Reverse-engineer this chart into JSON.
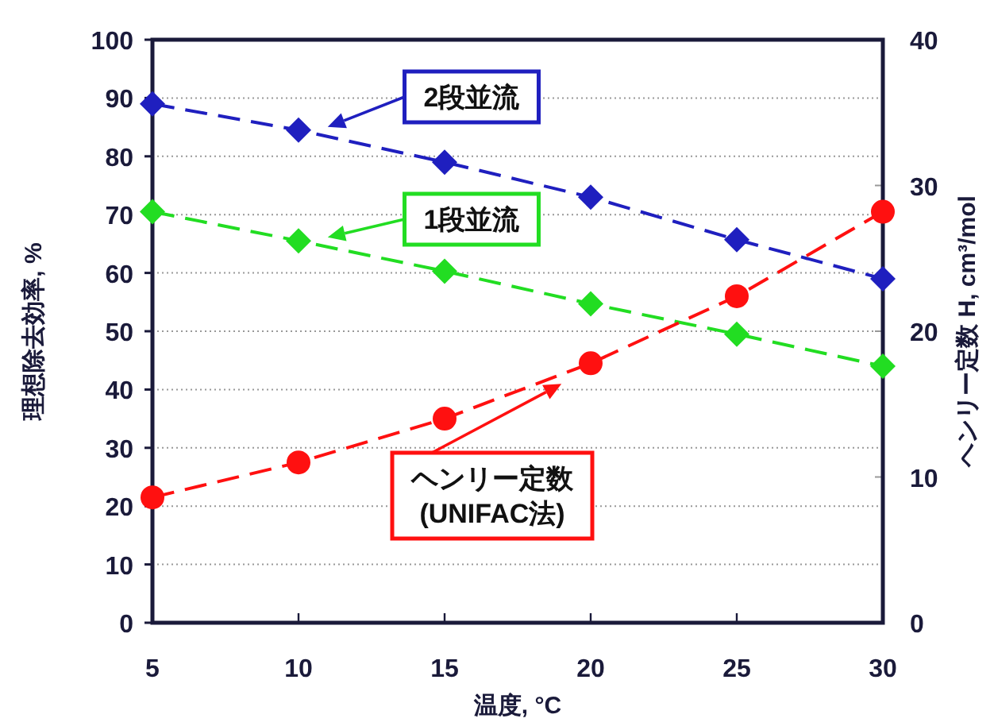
{
  "chart_data": {
    "type": "line",
    "xlabel": "温度, °C",
    "ylabel": "理想除去効率, %",
    "y2label": "ヘンリー定数 H, cm³/mol",
    "x": [
      5,
      10,
      15,
      20,
      25,
      30
    ],
    "xlim": [
      5,
      30
    ],
    "xticks": [
      5,
      10,
      15,
      20,
      25,
      30
    ],
    "ylim": [
      0,
      100
    ],
    "yticks": [
      0,
      10,
      20,
      30,
      40,
      50,
      60,
      70,
      80,
      90,
      100
    ],
    "y2lim": [
      0,
      40
    ],
    "y2ticks": [
      0,
      10,
      20,
      30,
      40
    ],
    "grid": "y",
    "legend": "top",
    "line_style": "dashed",
    "series": [
      {
        "name": "2段並流",
        "color": "#1f1fbf",
        "marker": "diamond",
        "values": [
          89,
          84.5,
          79,
          73,
          65.7,
          59
        ]
      },
      {
        "name": "1段並流",
        "color": "#22dd22",
        "marker": "diamond",
        "values": [
          70.5,
          65.5,
          60.3,
          54.7,
          49.5,
          44
        ]
      },
      {
        "name": "ヘンリー定数\n(UNIFAC法)",
        "color": "#ff1010",
        "marker": "circle",
        "axis": "y2",
        "values": [
          8.6,
          11.0,
          14.0,
          17.8,
          22.4,
          28.2
        ]
      }
    ]
  }
}
